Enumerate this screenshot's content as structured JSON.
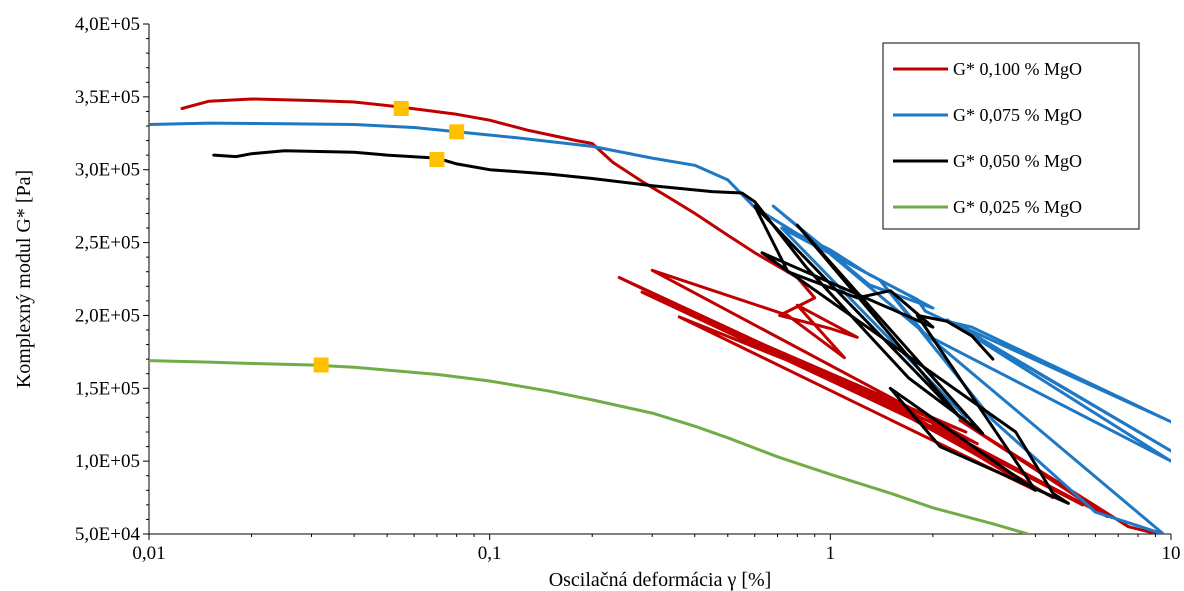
{
  "chart_data": {
    "type": "line",
    "xlabel": "Oscilačná deformácia γ [%]",
    "ylabel": "Komplexný modul G* [Pa]",
    "x_scale": "log",
    "xlim": [
      0.01,
      10
    ],
    "ylim": [
      50000,
      400000
    ],
    "x_tick_labels": [
      "0,01",
      "0,1",
      "1",
      "10"
    ],
    "y_tick_labels": [
      "5,0E+04",
      "1,0E+05",
      "1,5E+05",
      "2,0E+05",
      "2,5E+05",
      "3,0E+05",
      "3,5E+05",
      "4,0E+05"
    ],
    "grid": false,
    "legend_position": "top-right",
    "series": [
      {
        "name": "G* 0,100 % MgO",
        "color": "#C00000",
        "points": [
          [
            0.0125,
            342000
          ],
          [
            0.015,
            347000
          ],
          [
            0.02,
            348500
          ],
          [
            0.03,
            347500
          ],
          [
            0.04,
            346500
          ],
          [
            0.055,
            343000
          ],
          [
            0.08,
            338000
          ],
          [
            0.1,
            334000
          ],
          [
            0.13,
            327000
          ],
          [
            0.18,
            320000
          ],
          [
            0.2,
            318000
          ],
          [
            0.23,
            305000
          ],
          [
            0.28,
            292000
          ],
          [
            0.33,
            282000
          ],
          [
            0.4,
            270000
          ],
          [
            0.5,
            255000
          ],
          [
            0.6,
            243000
          ],
          [
            0.8,
            226000
          ],
          [
            0.9,
            212000
          ],
          [
            0.71,
            200000
          ],
          [
            1.0,
            191000
          ],
          [
            1.2,
            185000
          ],
          [
            0.8,
            207000
          ],
          [
            1.1,
            171000
          ],
          [
            0.75,
            200000
          ],
          [
            0.3,
            231000
          ],
          [
            2.7,
            112000
          ],
          [
            0.24,
            226000
          ],
          [
            3.0,
            103000
          ],
          [
            0.28,
            216000
          ],
          [
            2.5,
            120000
          ],
          [
            0.36,
            199000
          ],
          [
            4.0,
            80000
          ],
          [
            1.5,
            140000
          ],
          [
            4.5,
            75000
          ],
          [
            1.2,
            150000
          ],
          [
            5.5,
            70000
          ],
          [
            2.0,
            125000
          ],
          [
            6.5,
            62000
          ],
          [
            2.4,
            128000
          ],
          [
            7.5,
            55000
          ],
          [
            9.5,
            49000
          ]
        ]
      },
      {
        "name": "G* 0,075 % MgO",
        "color": "#1F78C4",
        "points": [
          [
            0.01,
            331000
          ],
          [
            0.015,
            332000
          ],
          [
            0.025,
            331500
          ],
          [
            0.04,
            331000
          ],
          [
            0.06,
            329000
          ],
          [
            0.08,
            326000
          ],
          [
            0.12,
            322000
          ],
          [
            0.2,
            316000
          ],
          [
            0.3,
            308000
          ],
          [
            0.4,
            303000
          ],
          [
            0.5,
            293000
          ],
          [
            0.6,
            274000
          ],
          [
            0.8,
            256000
          ],
          [
            1.0,
            245000
          ],
          [
            1.3,
            228000
          ],
          [
            1.8,
            211000
          ],
          [
            1.9,
            203000
          ],
          [
            2.2,
            196000
          ],
          [
            2.6,
            192000
          ],
          [
            10,
            127000
          ],
          [
            2.3,
            195000
          ],
          [
            10,
            107000
          ],
          [
            2.2,
            197000
          ],
          [
            10,
            100000
          ],
          [
            1.9,
            187000
          ],
          [
            1.4,
            224000
          ],
          [
            3.0,
            128000
          ],
          [
            6.0,
            65000
          ],
          [
            9.5,
            50000
          ],
          [
            0.68,
            275000
          ],
          [
            1.3,
            221000
          ],
          [
            2.0,
            205000
          ],
          [
            0.72,
            260000
          ],
          [
            2.5,
            130000
          ]
        ]
      },
      {
        "name": "G* 0,050 % MgO",
        "color": "#000000",
        "points": [
          [
            0.0155,
            310000
          ],
          [
            0.018,
            309000
          ],
          [
            0.02,
            311000
          ],
          [
            0.025,
            313000
          ],
          [
            0.04,
            312000
          ],
          [
            0.05,
            310000
          ],
          [
            0.07,
            308000
          ],
          [
            0.08,
            304000
          ],
          [
            0.1,
            300000
          ],
          [
            0.15,
            297000
          ],
          [
            0.2,
            294000
          ],
          [
            0.3,
            289000
          ],
          [
            0.45,
            285000
          ],
          [
            0.55,
            284000
          ],
          [
            0.6,
            278000
          ],
          [
            0.85,
            233000
          ],
          [
            1.7,
            157000
          ],
          [
            2.8,
            119000
          ],
          [
            0.8,
            262000
          ],
          [
            2.4,
            130000
          ],
          [
            0.6,
            275000
          ],
          [
            0.75,
            230000
          ],
          [
            1.2,
            212000
          ],
          [
            1.5,
            217000
          ],
          [
            2.0,
            192000
          ],
          [
            0.63,
            243000
          ],
          [
            3.5,
            120000
          ],
          [
            4.5,
            78000
          ],
          [
            5.0,
            71000
          ],
          [
            2.1,
            110000
          ],
          [
            1.5,
            150000
          ],
          [
            4.0,
            80000
          ],
          [
            1.8,
            200000
          ],
          [
            2.2,
            196000
          ],
          [
            2.6,
            186000
          ],
          [
            3.0,
            170000
          ]
        ]
      },
      {
        "name": "G* 0,025 % MgO",
        "color": "#70AD47",
        "points": [
          [
            0.01,
            169000
          ],
          [
            0.015,
            168000
          ],
          [
            0.02,
            167000
          ],
          [
            0.03,
            166000
          ],
          [
            0.04,
            164500
          ],
          [
            0.05,
            162500
          ],
          [
            0.07,
            159500
          ],
          [
            0.1,
            155000
          ],
          [
            0.15,
            148000
          ],
          [
            0.2,
            142000
          ],
          [
            0.3,
            133000
          ],
          [
            0.4,
            124000
          ],
          [
            0.5,
            116000
          ],
          [
            0.7,
            103000
          ],
          [
            1.0,
            91000
          ],
          [
            1.5,
            78000
          ],
          [
            2.0,
            68000
          ],
          [
            3.0,
            57000
          ],
          [
            3.8,
            50000
          ]
        ]
      }
    ],
    "markers": {
      "color": "#FFC000",
      "points": [
        [
          0.055,
          342000
        ],
        [
          0.08,
          326000
        ],
        [
          0.07,
          307000
        ],
        [
          0.032,
          166000
        ]
      ]
    }
  }
}
